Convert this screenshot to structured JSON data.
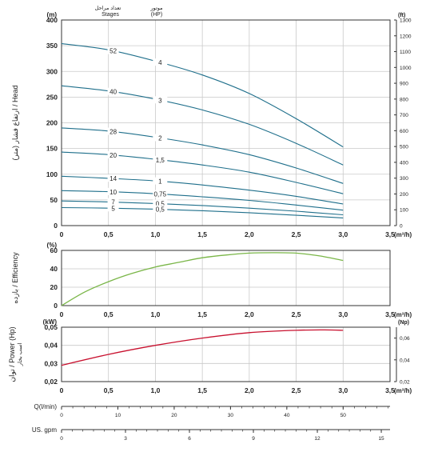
{
  "chart_data": [
    {
      "id": "head",
      "type": "line",
      "ylabel": "(متر) ارتفاع فشار / Head",
      "yunit": "(m)",
      "y2unit": "(ft)",
      "x_label": "(m³/h)",
      "xlim": [
        0,
        3.5
      ],
      "ylim": [
        0,
        400
      ],
      "y2lim": [
        0,
        1300
      ],
      "x_ticks": [
        "0",
        "0,5",
        "1,0",
        "1,5",
        "2,0",
        "2,5",
        "3,0",
        "3,5"
      ],
      "y_ticks": [
        "0",
        "50",
        "100",
        "150",
        "200",
        "250",
        "300",
        "350",
        "400"
      ],
      "y2_ticks": [
        "0",
        "100",
        "200",
        "300",
        "400",
        "500",
        "600",
        "700",
        "800",
        "900",
        "1000",
        "1100",
        "1200",
        "1300"
      ],
      "stages_header": [
        "تعداد مراحل",
        "Stages"
      ],
      "hp_header": [
        "موتور",
        "(HP)"
      ],
      "grid": true,
      "series": [
        {
          "stages": "52",
          "hp": "4",
          "x": [
            0,
            0.5,
            1.0,
            1.5,
            2.0,
            2.5,
            3.0
          ],
          "y": [
            354,
            342,
            320,
            293,
            257,
            208,
            153
          ]
        },
        {
          "stages": "40",
          "hp": "3",
          "x": [
            0,
            0.5,
            1.0,
            1.5,
            2.0,
            2.5,
            3.0
          ],
          "y": [
            272,
            262,
            246,
            225,
            197,
            160,
            118
          ]
        },
        {
          "stages": "28",
          "hp": "2",
          "x": [
            0,
            0.5,
            1.0,
            1.5,
            2.0,
            2.5,
            3.0
          ],
          "y": [
            190,
            184,
            172,
            157,
            138,
            112,
            82
          ]
        },
        {
          "stages": "20",
          "hp": "1,5",
          "x": [
            0,
            0.5,
            1.0,
            1.5,
            2.0,
            2.5,
            3.0
          ],
          "y": [
            143,
            138,
            129,
            118,
            104,
            84,
            62
          ]
        },
        {
          "stages": "14",
          "hp": "1",
          "x": [
            0,
            0.5,
            1.0,
            1.5,
            2.0,
            2.5,
            3.0
          ],
          "y": [
            96,
            92,
            87,
            79,
            69,
            57,
            42
          ]
        },
        {
          "stages": "10",
          "hp": "0,75",
          "x": [
            0,
            0.5,
            1.0,
            1.5,
            2.0,
            2.5,
            3.0
          ],
          "y": [
            68,
            66,
            62,
            56,
            49,
            40,
            30
          ]
        },
        {
          "stages": "7",
          "hp": "0,5",
          "x": [
            0,
            0.5,
            1.0,
            1.5,
            2.0,
            2.5,
            3.0
          ],
          "y": [
            48,
            46,
            43,
            39,
            34,
            28,
            21
          ]
        },
        {
          "stages": "5",
          "hp": "0,5",
          "x": [
            0,
            0.5,
            1.0,
            1.5,
            2.0,
            2.5,
            3.0
          ],
          "y": [
            35,
            34,
            32,
            29,
            25,
            20,
            15
          ]
        }
      ]
    },
    {
      "id": "efficiency",
      "type": "line",
      "ylabel": "بازده / Efficiency",
      "yunit": "(%)",
      "x_label": "(m³/h)",
      "xlim": [
        0,
        3.5
      ],
      "ylim": [
        0,
        60
      ],
      "x_ticks": [
        "0",
        "0,5",
        "1,0",
        "1,5",
        "2,0",
        "2,5",
        "3,0",
        "3,5"
      ],
      "y_ticks": [
        "0",
        "20",
        "40",
        "60"
      ],
      "grid": true,
      "color": "#7ab648",
      "series": [
        {
          "x": [
            0,
            0.25,
            0.5,
            0.75,
            1.0,
            1.25,
            1.5,
            1.75,
            2.0,
            2.25,
            2.5,
            2.75,
            3.0
          ],
          "y": [
            0,
            15,
            26,
            35,
            42,
            47,
            52,
            55,
            57,
            57.5,
            57,
            54,
            49
          ]
        }
      ]
    },
    {
      "id": "power",
      "type": "line",
      "ylabel": "توان / Power (Hp)",
      "ylabel_sub": "اسب بخار",
      "yunit": "(kW)",
      "y2unit": "(Np)",
      "x_label": "(m³/h)",
      "xlim": [
        0,
        3.5
      ],
      "ylim": [
        0.02,
        0.05
      ],
      "y2lim": [
        0.02,
        0.07
      ],
      "x_ticks": [
        "0",
        "0,5",
        "1,0",
        "1,5",
        "2,0",
        "2,5",
        "3,0",
        "3,5"
      ],
      "y_ticks": [
        "0,02",
        "0,03",
        "0,04",
        "0,05"
      ],
      "y2_ticks": [
        "0,02",
        "0,04",
        "0,06"
      ],
      "grid": true,
      "color": "#c8102e",
      "series": [
        {
          "x": [
            0,
            0.5,
            1.0,
            1.5,
            2.0,
            2.5,
            2.8,
            3.0
          ],
          "y": [
            0.029,
            0.035,
            0.04,
            0.044,
            0.047,
            0.0483,
            0.0485,
            0.0483
          ]
        }
      ]
    }
  ],
  "flow_scales": [
    {
      "label": "Q(l/min)",
      "ticks": [
        "0",
        "10",
        "20",
        "30",
        "40",
        "50"
      ],
      "values": [
        0,
        10,
        20,
        30,
        40,
        50
      ],
      "max": 58.33
    },
    {
      "label": "US. gpm",
      "ticks": [
        "0",
        "3",
        "6",
        "9",
        "12",
        "15"
      ],
      "values": [
        0,
        3,
        6,
        9,
        12,
        15
      ],
      "max": 15.41
    }
  ]
}
